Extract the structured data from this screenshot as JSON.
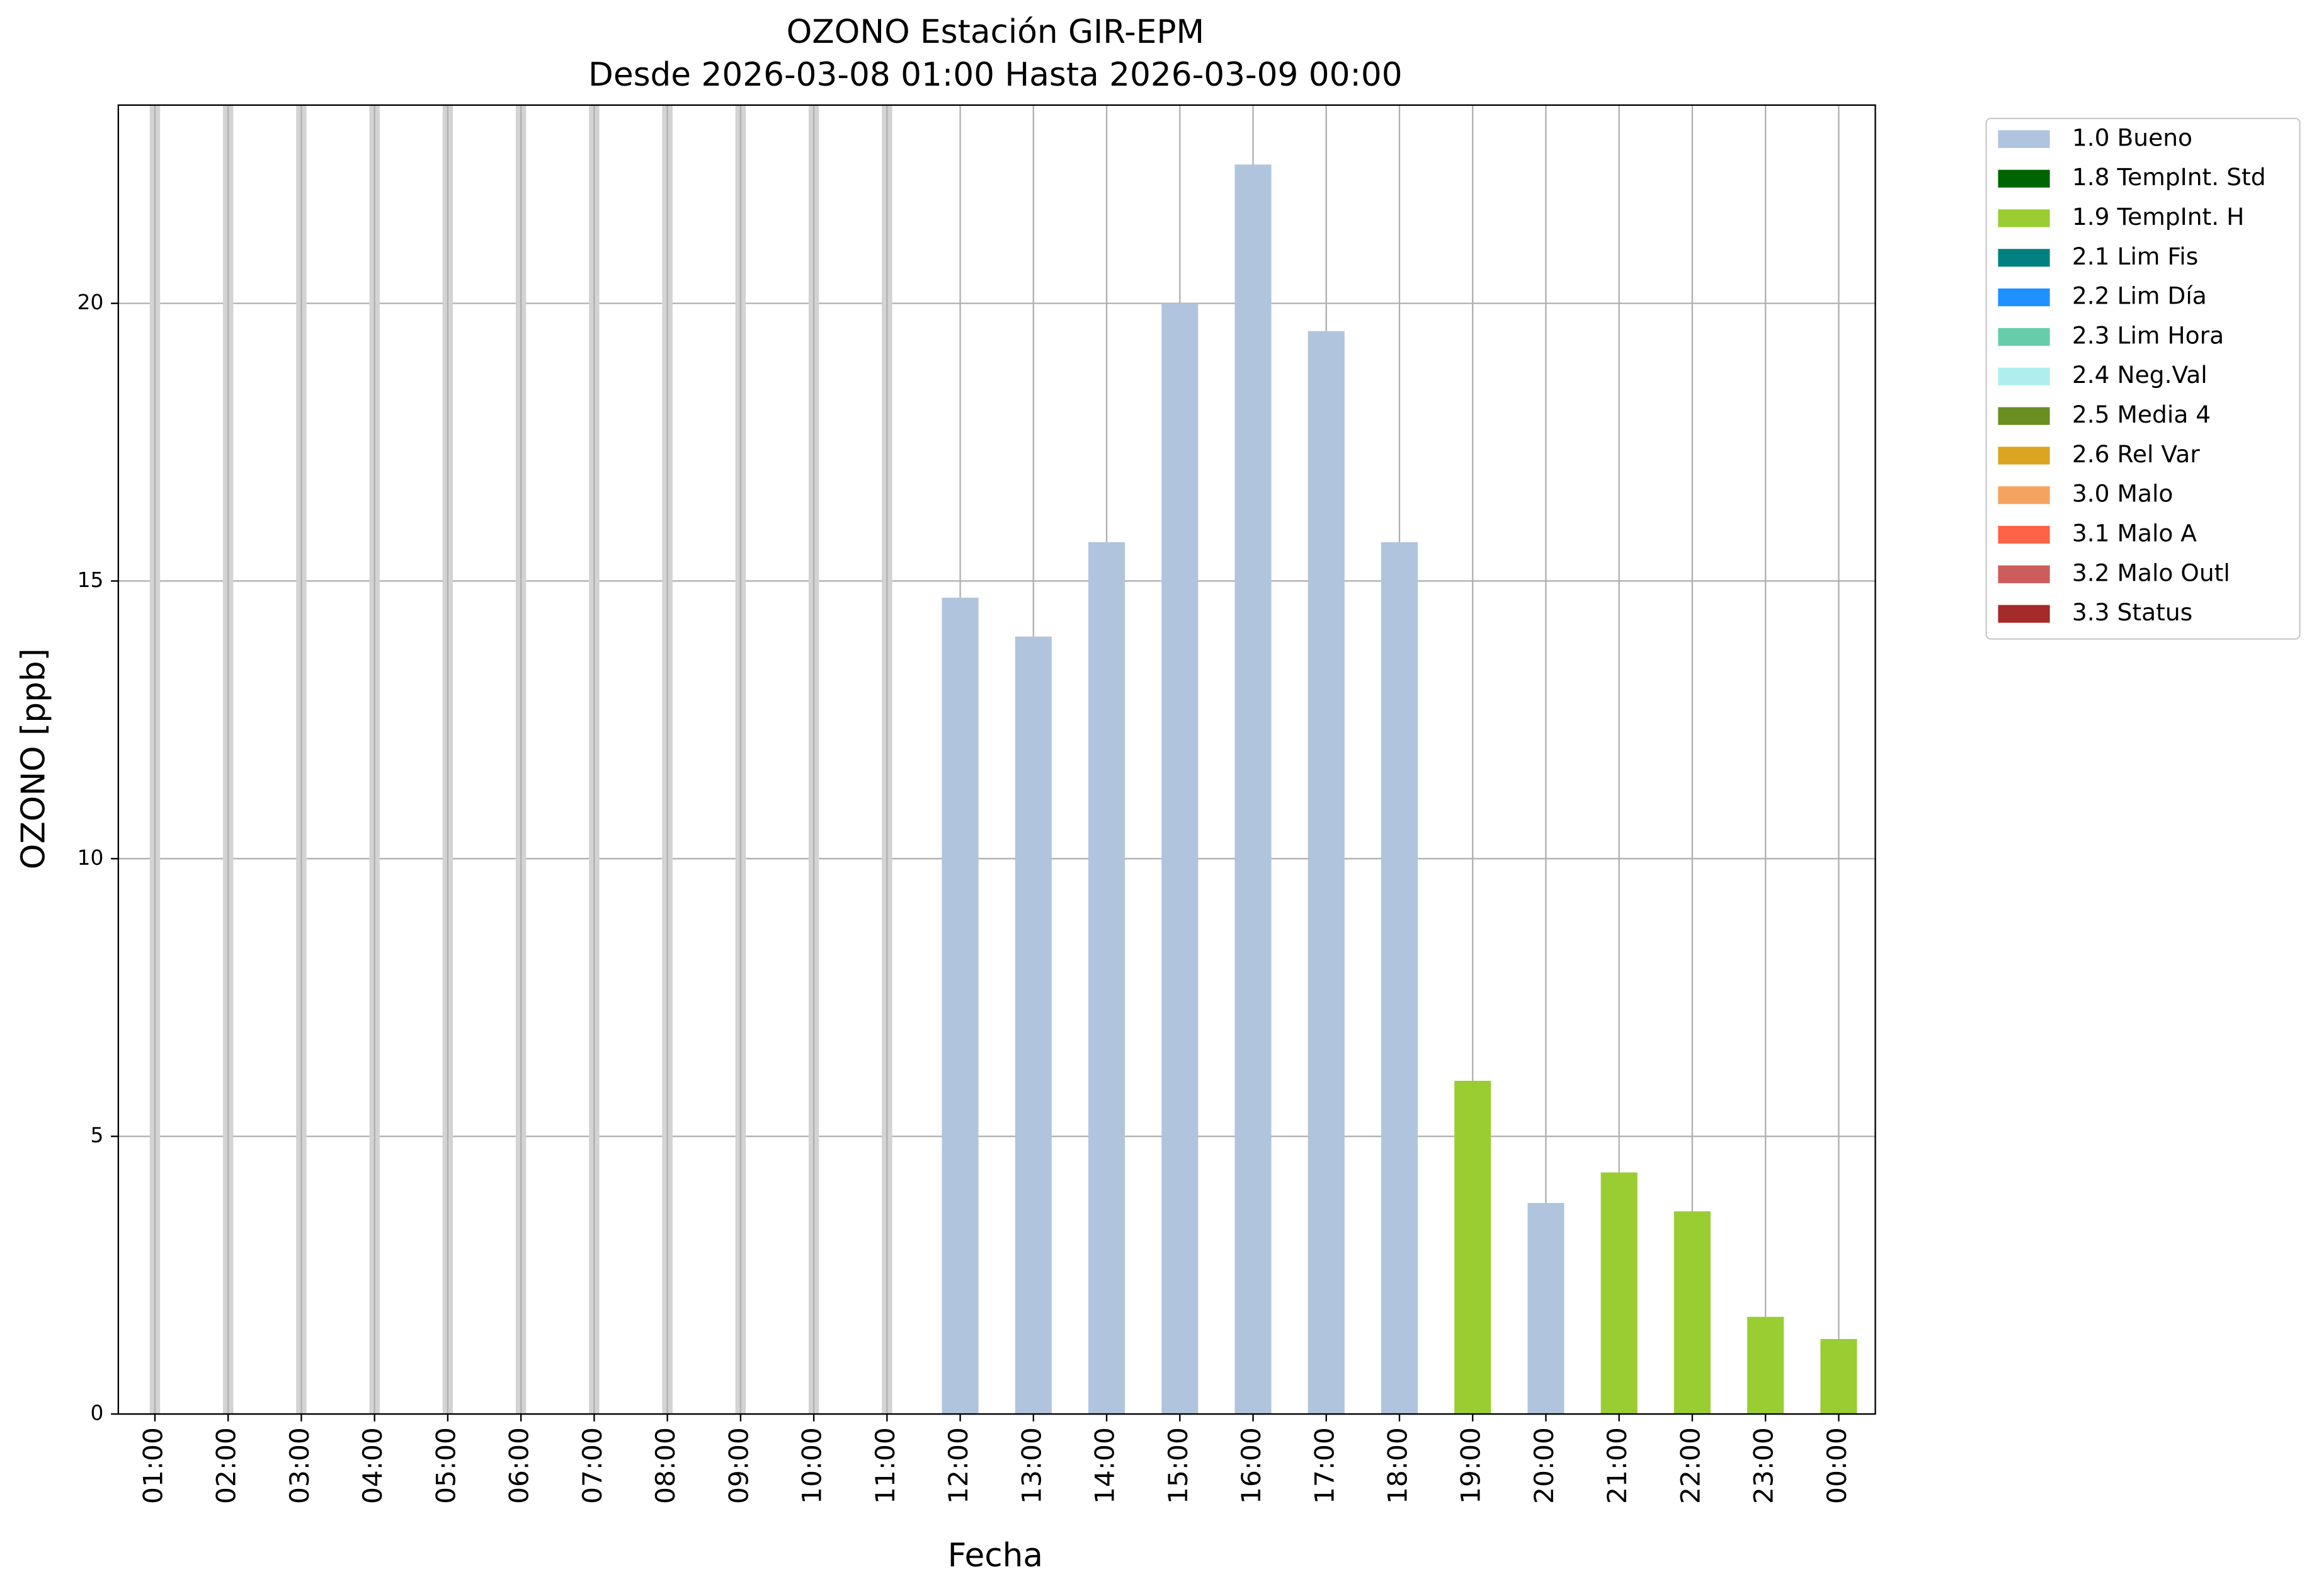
{
  "chart_data": {
    "type": "bar",
    "title": "OZONO Estación GIR-EPM",
    "subtitle": "Desde 2026-03-08 01:00 Hasta 2026-03-09 00:00",
    "x_label": "Fecha",
    "y_label": "OZONO [ppb]",
    "categories": [
      "01:00",
      "02:00",
      "03:00",
      "04:00",
      "05:00",
      "06:00",
      "07:00",
      "08:00",
      "09:00",
      "10:00",
      "11:00",
      "12:00",
      "13:00",
      "14:00",
      "15:00",
      "16:00",
      "17:00",
      "18:00",
      "19:00",
      "20:00",
      "21:00",
      "22:00",
      "23:00",
      "00:00"
    ],
    "series": [
      {
        "name": "1.0 Bueno",
        "color": "#b0c4de",
        "values": [
          null,
          null,
          null,
          null,
          null,
          null,
          null,
          null,
          null,
          null,
          null,
          14.7,
          14.0,
          15.7,
          20.0,
          22.5,
          19.5,
          15.7,
          null,
          3.8,
          null,
          null,
          null,
          null
        ]
      },
      {
        "name": "1.8 TempInt. Std",
        "color": "#006400",
        "values": [
          null,
          null,
          null,
          null,
          null,
          null,
          null,
          null,
          null,
          null,
          null,
          null,
          null,
          null,
          null,
          null,
          null,
          null,
          null,
          null,
          null,
          null,
          null,
          null
        ]
      },
      {
        "name": "1.9 TempInt. H",
        "color": "#9acd32",
        "values": [
          null,
          null,
          null,
          null,
          null,
          null,
          null,
          null,
          null,
          null,
          null,
          null,
          null,
          null,
          null,
          null,
          null,
          null,
          6.0,
          null,
          4.35,
          3.65,
          1.75,
          1.35
        ]
      },
      {
        "name": "2.1 Lim Fis",
        "color": "#008080",
        "values": [
          null,
          null,
          null,
          null,
          null,
          null,
          null,
          null,
          null,
          null,
          null,
          null,
          null,
          null,
          null,
          null,
          null,
          null,
          null,
          null,
          null,
          null,
          null,
          null
        ]
      },
      {
        "name": "2.2 Lim Día",
        "color": "#1e90ff",
        "values": [
          null,
          null,
          null,
          null,
          null,
          null,
          null,
          null,
          null,
          null,
          null,
          null,
          null,
          null,
          null,
          null,
          null,
          null,
          null,
          null,
          null,
          null,
          null,
          null
        ]
      },
      {
        "name": "2.3 Lim Hora",
        "color": "#66cdaa",
        "values": [
          null,
          null,
          null,
          null,
          null,
          null,
          null,
          null,
          null,
          null,
          null,
          null,
          null,
          null,
          null,
          null,
          null,
          null,
          null,
          null,
          null,
          null,
          null,
          null
        ]
      },
      {
        "name": "2.4 Neg.Val",
        "color": "#afeeee",
        "values": [
          null,
          null,
          null,
          null,
          null,
          null,
          null,
          null,
          null,
          null,
          null,
          null,
          null,
          null,
          null,
          null,
          null,
          null,
          null,
          null,
          null,
          null,
          null,
          null
        ]
      },
      {
        "name": "2.5 Media 4",
        "color": "#6b8e23",
        "values": [
          null,
          null,
          null,
          null,
          null,
          null,
          null,
          null,
          null,
          null,
          null,
          null,
          null,
          null,
          null,
          null,
          null,
          null,
          null,
          null,
          null,
          null,
          null,
          null
        ]
      },
      {
        "name": "2.6 Rel Var",
        "color": "#daa520",
        "values": [
          null,
          null,
          null,
          null,
          null,
          null,
          null,
          null,
          null,
          null,
          null,
          null,
          null,
          null,
          null,
          null,
          null,
          null,
          null,
          null,
          null,
          null,
          null,
          null
        ]
      },
      {
        "name": "3.0 Malo",
        "color": "#f4a460",
        "values": [
          null,
          null,
          null,
          null,
          null,
          null,
          null,
          null,
          null,
          null,
          null,
          null,
          null,
          null,
          null,
          null,
          null,
          null,
          null,
          null,
          null,
          null,
          null,
          null
        ]
      },
      {
        "name": "3.1 Malo A",
        "color": "#ff6347",
        "values": [
          null,
          null,
          null,
          null,
          null,
          null,
          null,
          null,
          null,
          null,
          null,
          null,
          null,
          null,
          null,
          null,
          null,
          null,
          null,
          null,
          null,
          null,
          null,
          null
        ]
      },
      {
        "name": "3.2 Malo Outl",
        "color": "#cd5c5c",
        "values": [
          null,
          null,
          null,
          null,
          null,
          null,
          null,
          null,
          null,
          null,
          null,
          null,
          null,
          null,
          null,
          null,
          null,
          null,
          null,
          null,
          null,
          null,
          null,
          null
        ]
      },
      {
        "name": "3.3 Status",
        "color": "#a52a2a",
        "values": [
          null,
          null,
          null,
          null,
          null,
          null,
          null,
          null,
          null,
          null,
          null,
          null,
          null,
          null,
          null,
          null,
          null,
          null,
          null,
          null,
          null,
          null,
          null,
          null
        ]
      }
    ],
    "ylim": [
      0,
      23.57
    ],
    "yticks": [
      0,
      5,
      10,
      15,
      20
    ],
    "grid": true,
    "legend": "outside-right"
  }
}
